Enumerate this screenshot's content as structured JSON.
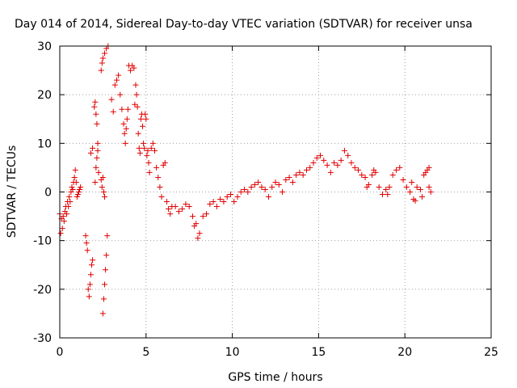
{
  "chart_data": {
    "type": "scatter",
    "title": "Day 014 of 2014, Sidereal Day-to-day VTEC variation (SDTVAR) for receiver unsa",
    "xlabel": "GPS time / hours",
    "ylabel": "SDTVAR / TECUs",
    "xlim": [
      0,
      25
    ],
    "ylim": [
      -30,
      30
    ],
    "xticks": [
      0,
      5,
      10,
      15,
      20,
      25
    ],
    "yticks": [
      -30,
      -20,
      -10,
      0,
      10,
      20,
      30
    ],
    "xtick_labels": [
      "0",
      "5",
      "10",
      "15",
      "20",
      "25"
    ],
    "ytick_labels": [
      "-30",
      "-20",
      "-10",
      "0",
      "10",
      "20",
      "30"
    ],
    "grid": true,
    "marker": "plus",
    "color": "#e00000",
    "series": [
      {
        "name": "SDTVAR",
        "points": [
          [
            0.0,
            -4.5
          ],
          [
            0.05,
            -8.5
          ],
          [
            0.1,
            -5.5
          ],
          [
            0.15,
            -7.5
          ],
          [
            0.2,
            -5.0
          ],
          [
            0.25,
            -6.0
          ],
          [
            0.3,
            -4.0
          ],
          [
            0.35,
            -3.0
          ],
          [
            0.4,
            -4.5
          ],
          [
            0.45,
            -2.0
          ],
          [
            0.5,
            -3.0
          ],
          [
            0.55,
            -1.0
          ],
          [
            0.6,
            -2.0
          ],
          [
            0.65,
            0.0
          ],
          [
            0.7,
            1.0
          ],
          [
            0.75,
            0.5
          ],
          [
            0.8,
            2.0
          ],
          [
            0.85,
            3.0
          ],
          [
            0.9,
            4.5
          ],
          [
            0.95,
            2.0
          ],
          [
            1.0,
            -1.0
          ],
          [
            1.05,
            -0.5
          ],
          [
            1.1,
            0.0
          ],
          [
            1.15,
            0.5
          ],
          [
            1.2,
            1.0
          ],
          [
            1.5,
            -9.0
          ],
          [
            1.55,
            -10.5
          ],
          [
            1.6,
            -12.0
          ],
          [
            1.65,
            -20.0
          ],
          [
            1.7,
            -21.5
          ],
          [
            1.75,
            -19.0
          ],
          [
            1.8,
            -17.0
          ],
          [
            1.85,
            -15.0
          ],
          [
            1.9,
            -14.0
          ],
          [
            1.8,
            8.0
          ],
          [
            1.9,
            9.0
          ],
          [
            2.0,
            17.5
          ],
          [
            2.05,
            18.5
          ],
          [
            2.1,
            16.0
          ],
          [
            2.15,
            14.0
          ],
          [
            2.2,
            10.0
          ],
          [
            2.05,
            2.0
          ],
          [
            2.1,
            5.0
          ],
          [
            2.15,
            7.0
          ],
          [
            2.2,
            8.5
          ],
          [
            2.25,
            4.0
          ],
          [
            2.4,
            2.5
          ],
          [
            2.45,
            1.0
          ],
          [
            2.5,
            3.0
          ],
          [
            2.55,
            0.0
          ],
          [
            2.6,
            -1.0
          ],
          [
            2.5,
            -25.0
          ],
          [
            2.55,
            -22.0
          ],
          [
            2.6,
            -19.0
          ],
          [
            2.65,
            -16.0
          ],
          [
            2.7,
            -13.0
          ],
          [
            2.75,
            -9.0
          ],
          [
            2.4,
            25.0
          ],
          [
            2.45,
            26.5
          ],
          [
            2.5,
            27.5
          ],
          [
            2.6,
            28.5
          ],
          [
            2.7,
            29.5
          ],
          [
            2.8,
            30.0
          ],
          [
            3.0,
            19.0
          ],
          [
            3.1,
            16.5
          ],
          [
            3.2,
            22.0
          ],
          [
            3.3,
            23.0
          ],
          [
            3.4,
            24.0
          ],
          [
            3.5,
            20.0
          ],
          [
            3.6,
            17.0
          ],
          [
            3.7,
            14.0
          ],
          [
            3.75,
            12.0
          ],
          [
            3.8,
            10.0
          ],
          [
            3.85,
            13.0
          ],
          [
            3.9,
            15.0
          ],
          [
            3.95,
            17.0
          ],
          [
            4.0,
            26.0
          ],
          [
            4.1,
            25.0
          ],
          [
            4.2,
            26.0
          ],
          [
            4.3,
            25.5
          ],
          [
            4.35,
            18.0
          ],
          [
            4.4,
            22.0
          ],
          [
            4.45,
            20.0
          ],
          [
            4.5,
            17.5
          ],
          [
            4.55,
            12.0
          ],
          [
            4.6,
            9.0
          ],
          [
            4.65,
            8.0
          ],
          [
            4.7,
            15.0
          ],
          [
            4.75,
            16.0
          ],
          [
            4.8,
            13.5
          ],
          [
            4.85,
            10.0
          ],
          [
            4.9,
            9.0
          ],
          [
            4.95,
            16.0
          ],
          [
            5.0,
            15.0
          ],
          [
            5.05,
            7.5
          ],
          [
            5.1,
            8.5
          ],
          [
            5.15,
            6.0
          ],
          [
            5.2,
            4.0
          ],
          [
            5.3,
            9.0
          ],
          [
            5.4,
            10.0
          ],
          [
            5.5,
            8.5
          ],
          [
            5.6,
            5.0
          ],
          [
            5.7,
            3.0
          ],
          [
            5.8,
            1.0
          ],
          [
            5.9,
            -1.0
          ],
          [
            6.0,
            5.5
          ],
          [
            6.1,
            6.0
          ],
          [
            6.2,
            -2.0
          ],
          [
            6.3,
            -3.5
          ],
          [
            6.4,
            -4.5
          ],
          [
            6.5,
            -3.0
          ],
          [
            6.7,
            -3.0
          ],
          [
            6.9,
            -4.0
          ],
          [
            7.1,
            -3.5
          ],
          [
            7.3,
            -2.5
          ],
          [
            7.5,
            -3.0
          ],
          [
            7.7,
            -5.0
          ],
          [
            7.8,
            -7.0
          ],
          [
            7.9,
            -6.5
          ],
          [
            8.0,
            -9.5
          ],
          [
            8.1,
            -8.5
          ],
          [
            8.3,
            -5.0
          ],
          [
            8.5,
            -4.5
          ],
          [
            8.7,
            -2.5
          ],
          [
            8.9,
            -2.0
          ],
          [
            9.1,
            -3.0
          ],
          [
            9.3,
            -1.5
          ],
          [
            9.5,
            -2.0
          ],
          [
            9.7,
            -1.0
          ],
          [
            9.9,
            -0.5
          ],
          [
            10.1,
            -2.0
          ],
          [
            10.3,
            -1.0
          ],
          [
            10.5,
            0.0
          ],
          [
            10.7,
            0.5
          ],
          [
            10.9,
            0.0
          ],
          [
            11.1,
            1.0
          ],
          [
            11.3,
            1.5
          ],
          [
            11.5,
            2.0
          ],
          [
            11.7,
            1.0
          ],
          [
            11.9,
            0.5
          ],
          [
            12.1,
            -1.0
          ],
          [
            12.3,
            1.0
          ],
          [
            12.5,
            2.0
          ],
          [
            12.7,
            1.5
          ],
          [
            12.9,
            0.0
          ],
          [
            13.1,
            2.5
          ],
          [
            13.3,
            3.0
          ],
          [
            13.5,
            2.0
          ],
          [
            13.7,
            3.5
          ],
          [
            13.9,
            4.0
          ],
          [
            14.1,
            3.5
          ],
          [
            14.3,
            4.5
          ],
          [
            14.5,
            5.0
          ],
          [
            14.7,
            6.0
          ],
          [
            14.9,
            7.0
          ],
          [
            15.1,
            7.5
          ],
          [
            15.3,
            6.5
          ],
          [
            15.5,
            5.5
          ],
          [
            15.7,
            4.0
          ],
          [
            15.9,
            6.0
          ],
          [
            16.1,
            5.5
          ],
          [
            16.3,
            6.5
          ],
          [
            16.5,
            8.5
          ],
          [
            16.7,
            7.5
          ],
          [
            16.9,
            6.0
          ],
          [
            17.1,
            5.0
          ],
          [
            17.3,
            4.5
          ],
          [
            17.5,
            3.5
          ],
          [
            17.7,
            3.0
          ],
          [
            17.9,
            1.5
          ],
          [
            18.1,
            3.5
          ],
          [
            18.3,
            4.0
          ],
          [
            18.5,
            1.0
          ],
          [
            18.7,
            -0.5
          ],
          [
            18.9,
            0.5
          ],
          [
            19.1,
            1.0
          ],
          [
            19.3,
            3.5
          ],
          [
            19.5,
            4.5
          ],
          [
            19.7,
            5.0
          ],
          [
            19.9,
            2.5
          ],
          [
            20.1,
            1.0
          ],
          [
            20.3,
            0.0
          ],
          [
            20.5,
            -1.5
          ],
          [
            20.7,
            1.0
          ],
          [
            20.9,
            0.5
          ],
          [
            21.0,
            -1.0
          ],
          [
            21.1,
            3.5
          ],
          [
            21.2,
            4.0
          ],
          [
            21.3,
            4.5
          ],
          [
            21.4,
            1.0
          ],
          [
            21.5,
            0.0
          ],
          [
            18.2,
            4.5
          ],
          [
            19.0,
            -0.5
          ],
          [
            20.4,
            2.0
          ],
          [
            17.8,
            1.0
          ],
          [
            20.6,
            -1.8
          ],
          [
            21.4,
            5.0
          ]
        ]
      }
    ]
  }
}
